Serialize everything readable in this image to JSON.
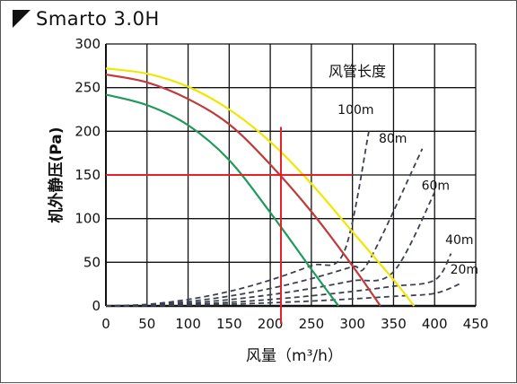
{
  "header": {
    "title": "Smarto 3.0H"
  },
  "chart_data": {
    "type": "line",
    "title": "Smarto 3.0H",
    "xlabel": "风量（m³/h）",
    "ylabel": "机外静压(Pa)",
    "xlim": [
      0,
      450
    ],
    "ylim": [
      0,
      300
    ],
    "xticks": [
      0,
      50,
      100,
      150,
      200,
      250,
      300,
      350,
      400,
      450
    ],
    "yticks": [
      0,
      50,
      100,
      150,
      200,
      250,
      300
    ],
    "grid": true,
    "fan_curves": [
      {
        "color": "#f2e600",
        "x": [
          0,
          50,
          100,
          150,
          200,
          250,
          300,
          350,
          375
        ],
        "y": [
          272,
          266,
          251,
          225,
          188,
          140,
          85,
          30,
          0
        ]
      },
      {
        "color": "#c0393b",
        "x": [
          0,
          50,
          100,
          150,
          200,
          250,
          300,
          334
        ],
        "y": [
          265,
          256,
          237,
          208,
          162,
          108,
          46,
          0
        ]
      },
      {
        "color": "#1f9a5a",
        "x": [
          0,
          50,
          100,
          150,
          200,
          250,
          283
        ],
        "y": [
          242,
          230,
          207,
          167,
          107,
          42,
          0
        ]
      }
    ],
    "duct_curves_title": "风管长度",
    "duct_curves": [
      {
        "name": "100m",
        "x": [
          50,
          100,
          150,
          200,
          250,
          290,
          320
        ],
        "y": [
          1.8,
          7.4,
          16.6,
          29.6,
          46.2,
          62.2,
          200
        ]
      },
      {
        "name": "80m",
        "x": [
          50,
          100,
          150,
          200,
          250,
          300,
          320,
          385
        ],
        "y": [
          1.2,
          5,
          11.2,
          20,
          31.2,
          45,
          51.2,
          180
        ]
      },
      {
        "name": "60m",
        "x": [
          50,
          100,
          150,
          200,
          250,
          300,
          350,
          400
        ],
        "y": [
          0.8,
          3.2,
          7.2,
          12.8,
          20,
          28.8,
          39.2,
          130
        ]
      },
      {
        "name": "40m",
        "x": [
          50,
          100,
          150,
          200,
          250,
          300,
          350,
          400,
          420
        ],
        "y": [
          0.5,
          1.8,
          4.1,
          7.4,
          11.6,
          16.6,
          22.6,
          29.6,
          60
        ]
      },
      {
        "name": "20m",
        "x": [
          50,
          100,
          150,
          200,
          250,
          300,
          350,
          400,
          430
        ],
        "y": [
          0.2,
          0.9,
          2.0,
          3.6,
          5.6,
          8.1,
          11,
          14.4,
          25
        ]
      }
    ],
    "duct_labels": [
      {
        "text": "100m",
        "x": 282,
        "y": 220
      },
      {
        "text": "80m",
        "x": 332,
        "y": 187
      },
      {
        "text": "60m",
        "x": 384,
        "y": 133
      },
      {
        "text": "40m",
        "x": 413,
        "y": 71
      },
      {
        "text": "20m",
        "x": 419,
        "y": 37
      }
    ],
    "operating_point": {
      "x": 213,
      "y": 150,
      "color": "#e8202a"
    }
  }
}
